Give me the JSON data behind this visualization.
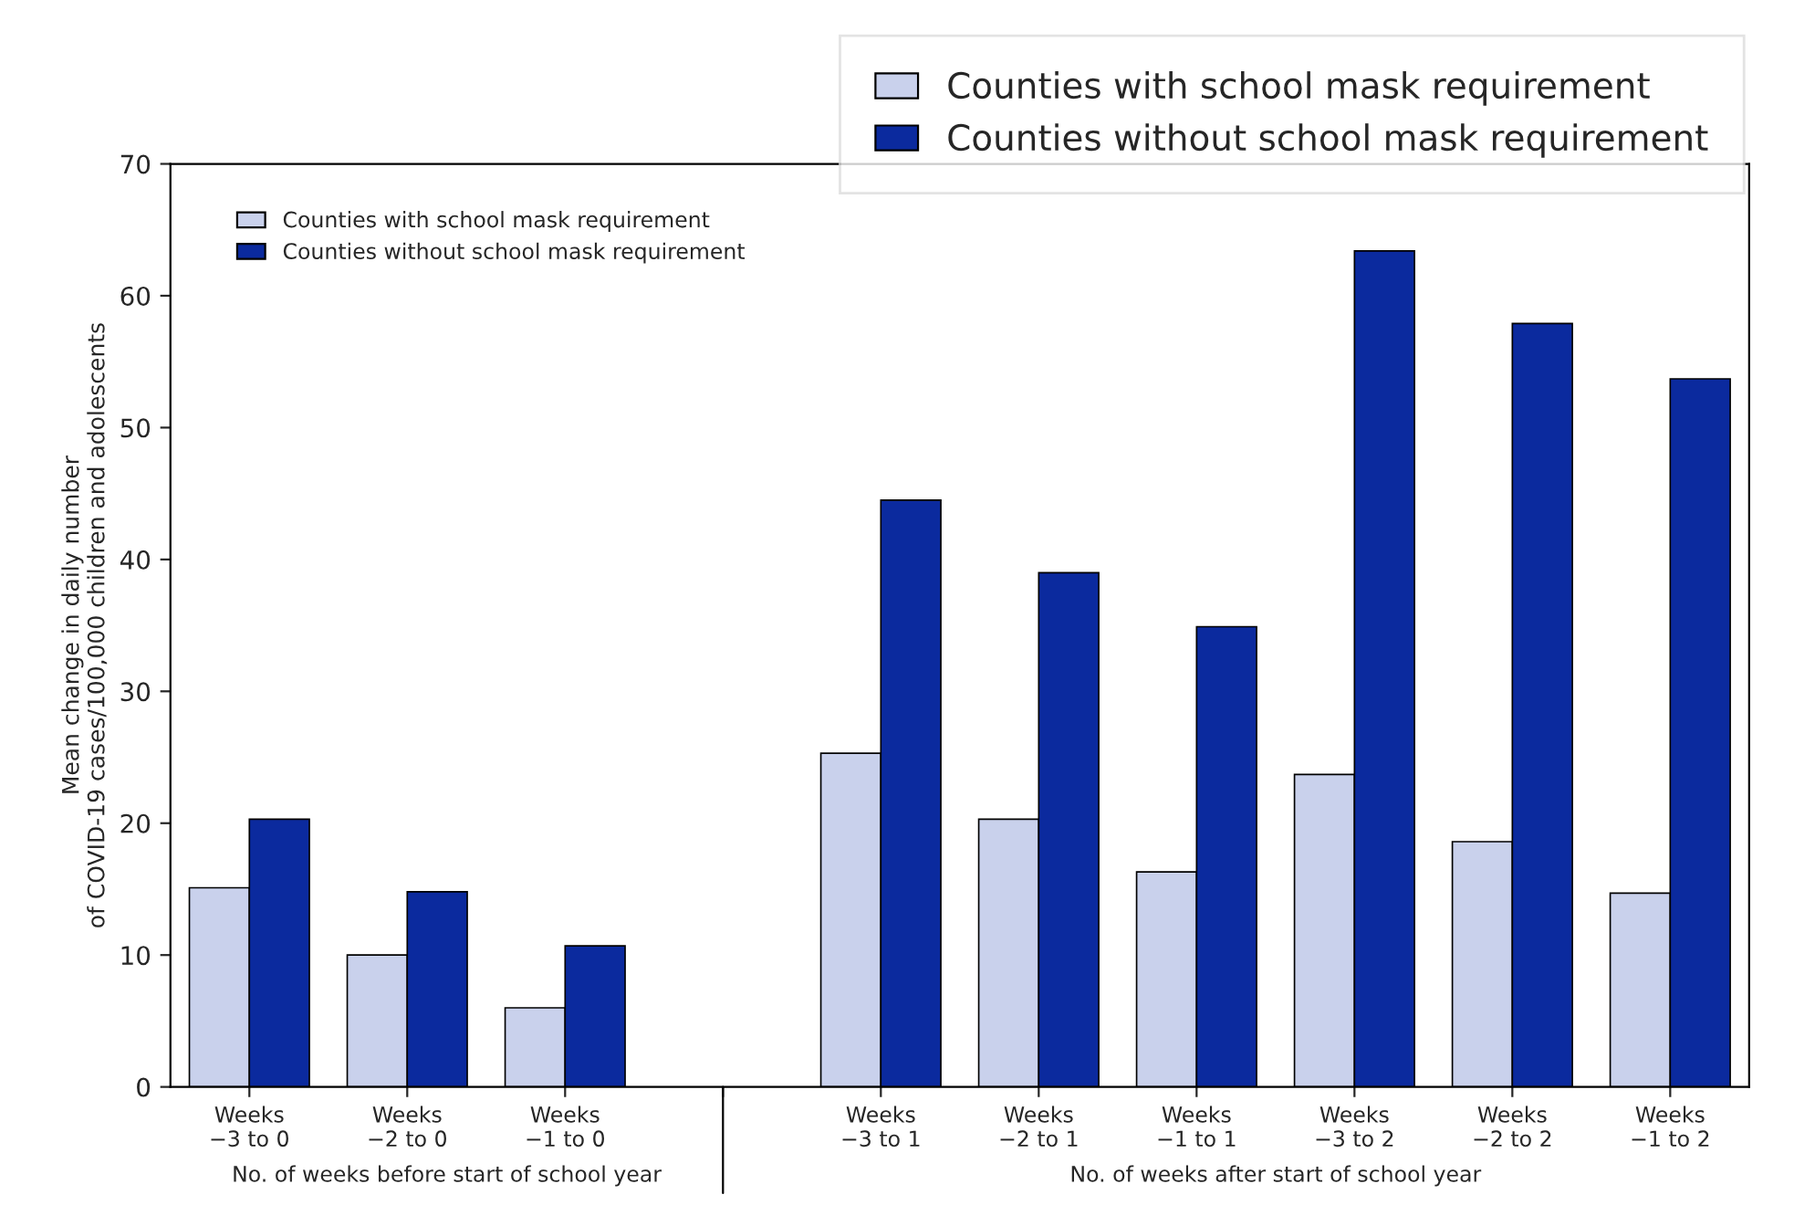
{
  "chart_data": {
    "type": "bar",
    "ylabel": "Mean change in daily number\nof COVID-19 cases/100,000 children and adolescents",
    "categories": [
      "Weeks\n−3 to 0",
      "Weeks\n−2 to 0",
      "Weeks\n−1 to 0",
      null,
      "Weeks\n−3 to 1",
      "Weeks\n−2 to 1",
      "Weeks\n−1 to 1",
      "Weeks\n−3 to 2",
      "Weeks\n−2 to 2",
      "Weeks\n−1 to 2"
    ],
    "series": [
      {
        "name": "Counties with school mask requirement",
        "color": "#c9d1ec",
        "values": [
          15.1,
          10,
          6,
          null,
          25.3,
          20.3,
          16.3,
          23.7,
          18.6,
          14.7
        ]
      },
      {
        "name": "Counties without school mask requirement",
        "color": "#0b2a9e",
        "values": [
          20.3,
          14.8,
          10.7,
          null,
          44.5,
          39,
          34.9,
          63.4,
          57.9,
          53.7
        ]
      }
    ],
    "ylim": [
      0,
      70
    ],
    "yticks": [
      0,
      10,
      20,
      30,
      40,
      50,
      60,
      70
    ],
    "legend": "top left",
    "grid": false,
    "annotations": [
      "No. of weeks before start of school year",
      "No. of weeks after start of school year"
    ]
  }
}
